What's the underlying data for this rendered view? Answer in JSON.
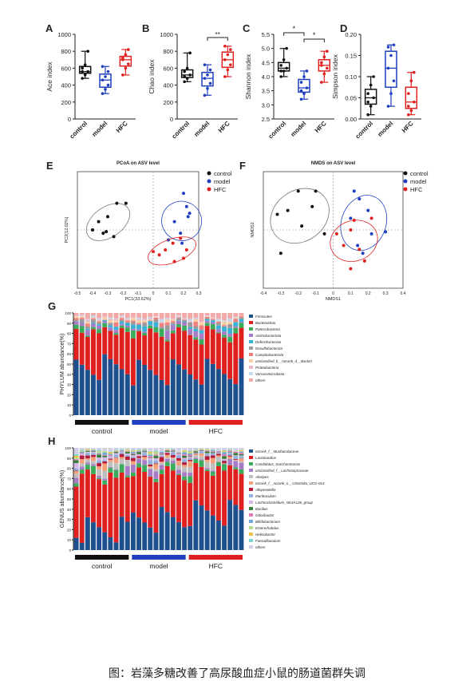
{
  "caption": "图：岩藻多糖改善了高尿酸血症小鼠的肠道菌群失调",
  "colors": {
    "control": "#111111",
    "model": "#1f3fbf",
    "HFC": "#e02020"
  },
  "groups": [
    "control",
    "model",
    "HFC"
  ],
  "panels": {
    "A": {
      "letter": "A",
      "ylabel": "Ace index",
      "ylim": [
        0,
        1000
      ],
      "ticks": [
        "0",
        "200",
        "400",
        "600",
        "800",
        "1000"
      ],
      "sig": []
    },
    "B": {
      "letter": "B",
      "ylabel": "Chao index",
      "ylim": [
        0,
        1000
      ],
      "ticks": [
        "0",
        "200",
        "400",
        "600",
        "800",
        "1000"
      ],
      "sig": [
        "**"
      ]
    },
    "C": {
      "letter": "C",
      "ylabel": "Shannon index",
      "ylim": [
        2.5,
        5.5
      ],
      "ticks": [
        "2.5",
        "3.0",
        "3.5",
        "4.0",
        "4.5",
        "5.0",
        "5.5"
      ],
      "sig": [
        "*",
        "*"
      ]
    },
    "D": {
      "letter": "D",
      "ylabel": "Simpson index",
      "ylim": [
        0,
        0.2
      ],
      "ticks": [
        "0.00",
        "0.05",
        "0.10",
        "0.15",
        "0.20"
      ],
      "sig": []
    },
    "E": {
      "letter": "E",
      "title": "PCoA on ASV level",
      "xlabel": "PC1(33.62%)",
      "ylabel": "PC2(12.02%)",
      "xticks": [
        "-0.5",
        "-0.4",
        "-0.3",
        "-0.2",
        "-0.1",
        "0",
        "0.1",
        "0.2",
        "0.3"
      ]
    },
    "F": {
      "letter": "F",
      "title": "NMDS on ASV level",
      "xlabel": "NMDS1",
      "ylabel": "NMDS2",
      "xticks": [
        "-0.4",
        "-0.3",
        "-0.2",
        "-0.1",
        "0",
        "0.1",
        "0.2",
        "0.3",
        "0.4"
      ]
    },
    "G": {
      "letter": "G",
      "ylabel": "PHYLUM abundance(%)",
      "ticks": [
        "0",
        "10",
        "20",
        "30",
        "40",
        "50",
        "60",
        "70",
        "80",
        "90",
        "100"
      ],
      "legend": [
        "Firmicutes",
        "Bacteroidota",
        "Patescibacteria",
        "Actinobacteriota",
        "Deferribacterota",
        "Desulfobacterota",
        "Campilobacterota",
        "unclassified_k__norank_d__Bacteri",
        "Proteobacteria",
        "Verrucomicrobiota",
        "others"
      ]
    },
    "H": {
      "letter": "H",
      "ylabel": "GENUS abundance(%)",
      "ticks": [
        "0",
        "10",
        "20",
        "30",
        "40",
        "50",
        "60",
        "70",
        "80",
        "90",
        "100"
      ],
      "legend": [
        "norank_f__Muribaculaceae",
        "Lactobacillus",
        "Candidatus_Saccharimonas",
        "unclassified_f__Lachnospiraceae",
        "Alistipes",
        "norank_f__norank_o__Clostridia_UCG-014",
        "Allopevotella",
        "Muribaculum",
        "Lachnoclostridium_NK4A136_group",
        "Bacillus",
        "Odoribacter",
        "Bifidobacterium",
        "Enterorhabdus",
        "Helicobacter",
        "Faecalibaculum",
        "others"
      ]
    }
  },
  "chart_data": [
    {
      "type": "box",
      "panel": "A",
      "ylabel": "Ace index",
      "ylim": [
        0,
        1000
      ],
      "categories": [
        "control",
        "model",
        "HFC"
      ],
      "series": [
        {
          "name": "control",
          "values": [
            480,
            520,
            560,
            600,
            640,
            800,
            560
          ]
        },
        {
          "name": "model",
          "values": [
            300,
            350,
            400,
            460,
            500,
            560,
            620
          ]
        },
        {
          "name": "HFC",
          "values": [
            520,
            600,
            650,
            700,
            760,
            820,
            720
          ]
        }
      ]
    },
    {
      "type": "box",
      "panel": "B",
      "ylabel": "Chao index",
      "ylim": [
        0,
        1000
      ],
      "categories": [
        "control",
        "model",
        "HFC"
      ],
      "series": [
        {
          "name": "control",
          "values": [
            440,
            480,
            520,
            560,
            600,
            780,
            500
          ]
        },
        {
          "name": "model",
          "values": [
            280,
            360,
            420,
            480,
            520,
            580,
            640
          ]
        },
        {
          "name": "HFC",
          "values": [
            500,
            580,
            640,
            700,
            760,
            820,
            860
          ]
        }
      ]
    },
    {
      "type": "box",
      "panel": "C",
      "ylabel": "Shannon index",
      "ylim": [
        2.5,
        5.5
      ],
      "categories": [
        "control",
        "model",
        "HFC"
      ],
      "series": [
        {
          "name": "control",
          "values": [
            4.0,
            4.2,
            4.3,
            4.4,
            4.6,
            5.0,
            4.2
          ]
        },
        {
          "name": "model",
          "values": [
            3.2,
            3.4,
            3.6,
            3.8,
            4.0,
            4.2,
            3.5
          ]
        },
        {
          "name": "HFC",
          "values": [
            3.8,
            4.1,
            4.3,
            4.5,
            4.7,
            4.9,
            4.4
          ]
        }
      ]
    },
    {
      "type": "box",
      "panel": "D",
      "ylabel": "Simpson index",
      "ylim": [
        0,
        0.2
      ],
      "categories": [
        "control",
        "model",
        "HFC"
      ],
      "series": [
        {
          "name": "control",
          "values": [
            0.01,
            0.03,
            0.05,
            0.06,
            0.08,
            0.1,
            0.04
          ]
        },
        {
          "name": "model",
          "values": [
            0.03,
            0.06,
            0.09,
            0.12,
            0.15,
            0.175,
            0.17
          ]
        },
        {
          "name": "HFC",
          "values": [
            0.01,
            0.02,
            0.04,
            0.06,
            0.09,
            0.11,
            0.03
          ]
        }
      ]
    },
    {
      "type": "scatter",
      "panel": "E",
      "xlim": [
        -0.5,
        0.3
      ],
      "ylim": [
        -0.35,
        0.35
      ],
      "series": [
        {
          "name": "control",
          "points": [
            [
              -0.36,
              0.05
            ],
            [
              -0.4,
              0.0
            ],
            [
              -0.33,
              -0.02
            ],
            [
              -0.3,
              0.08
            ],
            [
              -0.24,
              0.16
            ],
            [
              -0.18,
              0.16
            ],
            [
              -0.26,
              -0.04
            ],
            [
              -0.31,
              -0.01
            ]
          ]
        },
        {
          "name": "model",
          "points": [
            [
              0.2,
              0.22
            ],
            [
              0.22,
              0.14
            ],
            [
              0.24,
              0.1
            ],
            [
              0.14,
              0.05
            ],
            [
              0.18,
              -0.02
            ],
            [
              0.1,
              -0.06
            ],
            [
              0.19,
              -0.08
            ],
            [
              0.23,
              0.08
            ]
          ]
        },
        {
          "name": "HFC",
          "points": [
            [
              0.0,
              -0.13
            ],
            [
              0.04,
              -0.15
            ],
            [
              0.08,
              -0.12
            ],
            [
              0.14,
              -0.19
            ],
            [
              0.2,
              -0.17
            ],
            [
              0.22,
              -0.12
            ],
            [
              0.13,
              -0.08
            ],
            [
              0.18,
              -0.05
            ]
          ]
        }
      ]
    },
    {
      "type": "scatter",
      "panel": "F",
      "xlim": [
        -0.4,
        0.4
      ],
      "ylim": [
        -0.3,
        0.3
      ],
      "series": [
        {
          "name": "control",
          "points": [
            [
              -0.32,
              0.08
            ],
            [
              -0.3,
              -0.12
            ],
            [
              -0.26,
              0.1
            ],
            [
              -0.2,
              0.2
            ],
            [
              -0.1,
              0.2
            ],
            [
              -0.12,
              0.12
            ],
            [
              -0.05,
              -0.02
            ],
            [
              -0.18,
              0.02
            ]
          ]
        },
        {
          "name": "model",
          "points": [
            [
              0.12,
              0.2
            ],
            [
              0.15,
              0.16
            ],
            [
              0.2,
              0.1
            ],
            [
              0.1,
              0.06
            ],
            [
              0.22,
              -0.02
            ],
            [
              0.3,
              -0.01
            ],
            [
              0.17,
              -0.12
            ],
            [
              0.14,
              -0.08
            ]
          ]
        },
        {
          "name": "HFC",
          "points": [
            [
              0.02,
              -0.02
            ],
            [
              0.06,
              -0.08
            ],
            [
              0.1,
              0.0
            ],
            [
              0.12,
              0.05
            ],
            [
              0.15,
              -0.1
            ],
            [
              0.18,
              -0.16
            ],
            [
              0.1,
              -0.2
            ],
            [
              0.22,
              0.06
            ]
          ]
        }
      ]
    }
  ]
}
